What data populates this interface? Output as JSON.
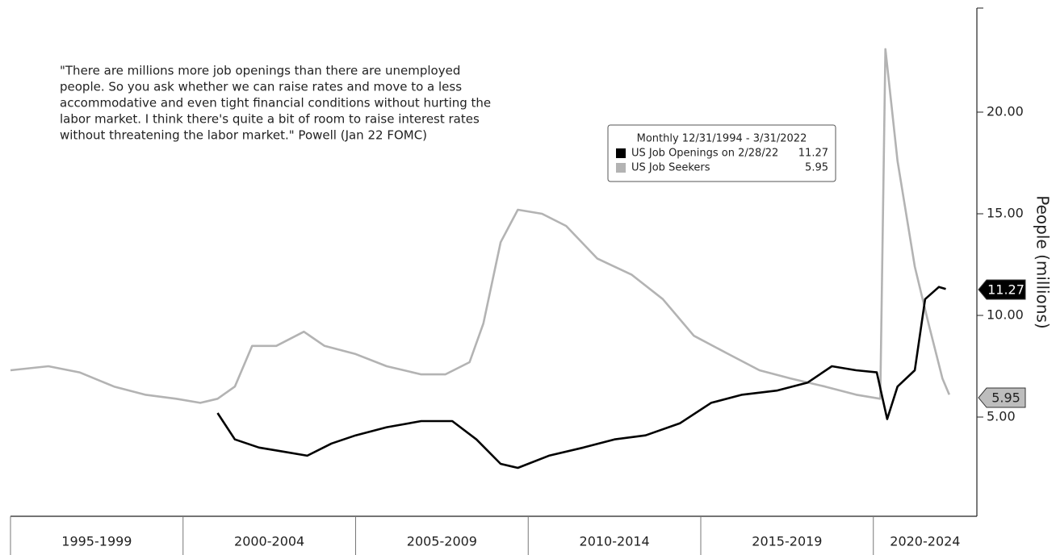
{
  "chart_data": {
    "type": "line",
    "annotation_lines": [
      "\"There are millions more job openings than there are unemployed",
      "people. So you ask whether we can raise rates and move to a less",
      "accommodative and even tight financial conditions without hurting the",
      "labor market. I think there's quite a bit of room to raise interest rates",
      "without threatening the labor market.\" Powell (Jan 22 FOMC)"
    ],
    "legend_title": "Monthly 12/31/1994 - 3/31/2022",
    "y_label": "People (millions)",
    "xlim": [
      1995,
      2023
    ],
    "ylim": [
      0,
      25
    ],
    "yticks": [
      {
        "value": 5,
        "label": "5.00"
      },
      {
        "value": 10,
        "label": "10.00"
      },
      {
        "value": 15,
        "label": "15.00"
      },
      {
        "value": 20,
        "label": "20.00"
      }
    ],
    "periods": [
      {
        "label": "1995-1999",
        "start": 1995,
        "end": 2000
      },
      {
        "label": "2000-2004",
        "start": 2000,
        "end": 2005
      },
      {
        "label": "2005-2009",
        "start": 2005,
        "end": 2010
      },
      {
        "label": "2010-2014",
        "start": 2010,
        "end": 2015
      },
      {
        "label": "2015-2019",
        "start": 2015,
        "end": 2020
      },
      {
        "label": "2020-2024",
        "start": 2020,
        "end": 2023
      }
    ],
    "series": [
      {
        "name": "US Job Openings on 2/28/22",
        "color": "#000000",
        "last_value": 11.27,
        "x": [
          2001.0,
          2001.5,
          2002.2,
          2002.9,
          2003.6,
          2004.3,
          2005.0,
          2005.9,
          2006.9,
          2007.8,
          2008.5,
          2009.2,
          2009.7,
          2010.6,
          2011.6,
          2012.5,
          2013.4,
          2014.4,
          2015.3,
          2016.2,
          2017.2,
          2018.1,
          2018.8,
          2019.5,
          2020.1,
          2020.4,
          2020.7,
          2021.2,
          2021.5,
          2021.9,
          2022.1
        ],
        "values": [
          5.2,
          3.9,
          3.5,
          3.3,
          3.1,
          3.7,
          4.1,
          4.5,
          4.8,
          4.8,
          3.9,
          2.7,
          2.5,
          3.1,
          3.5,
          3.9,
          4.1,
          4.7,
          5.7,
          6.1,
          6.3,
          6.7,
          7.5,
          7.3,
          7.2,
          4.9,
          6.5,
          7.3,
          10.8,
          11.4,
          11.3
        ]
      },
      {
        "name": "US Job Seekers",
        "color": "#b3b3b3",
        "last_value": 5.95,
        "x": [
          1995.0,
          1996.1,
          1997.0,
          1998.0,
          1998.9,
          1999.8,
          2000.5,
          2001.0,
          2001.5,
          2002.0,
          2002.7,
          2003.5,
          2004.1,
          2005.0,
          2005.9,
          2006.9,
          2007.6,
          2008.3,
          2008.7,
          2009.2,
          2009.7,
          2010.4,
          2011.1,
          2012.0,
          2013.0,
          2013.9,
          2014.8,
          2015.8,
          2016.7,
          2017.6,
          2018.6,
          2019.5,
          2020.2,
          2020.35,
          2020.7,
          2021.2,
          2021.6,
          2022.0,
          2022.2
        ],
        "values": [
          7.3,
          7.5,
          7.2,
          6.5,
          6.1,
          5.9,
          5.7,
          5.9,
          6.5,
          8.5,
          8.5,
          9.2,
          8.5,
          8.1,
          7.5,
          7.1,
          7.1,
          7.7,
          9.6,
          13.6,
          15.2,
          15.0,
          14.4,
          12.8,
          12.0,
          10.8,
          9.0,
          8.1,
          7.3,
          6.9,
          6.5,
          6.1,
          5.9,
          23.1,
          17.6,
          12.4,
          9.6,
          6.9,
          6.1
        ]
      }
    ]
  }
}
